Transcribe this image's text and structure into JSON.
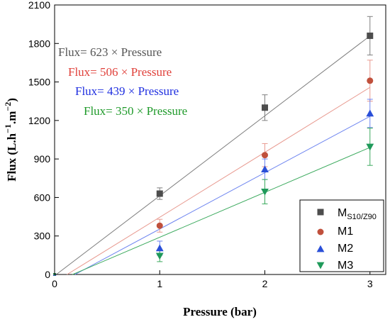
{
  "chart_data": {
    "type": "scatter",
    "xlabel": "Pressure (bar)",
    "ylabel": {
      "base": "Flux (L.h",
      "sup1": "−1",
      "mid": ".m",
      "sup2": "−2",
      "end": ")"
    },
    "xlim": [
      0,
      3.15
    ],
    "ylim": [
      0,
      2100
    ],
    "x_ticks": [
      "0",
      "1",
      "2",
      "3"
    ],
    "y_ticks": [
      "0",
      "300",
      "600",
      "900",
      "1200",
      "1500",
      "1800",
      "2100"
    ],
    "grid": false,
    "legend_position": "bottom-right",
    "series": [
      {
        "name": "M",
        "name_sub": "S10/Z90",
        "marker": "square",
        "color": "#4d4d4d",
        "line_color": "#7f7f7f",
        "x": [
          0,
          1,
          2,
          3
        ],
        "y": [
          0,
          630,
          1300,
          1860
        ],
        "err": [
          0,
          45,
          100,
          150
        ],
        "fit_slope": 623,
        "fit_intercept": -10
      },
      {
        "name": "M1",
        "marker": "circle",
        "color": "#c0503c",
        "line_color": "#e89a90",
        "x": [
          0,
          1,
          2,
          3
        ],
        "y": [
          0,
          380,
          930,
          1510
        ],
        "err": [
          0,
          50,
          90,
          160
        ],
        "fit_slope": 506,
        "fit_intercept": -60
      },
      {
        "name": "M2",
        "marker": "triangle-up",
        "color": "#2a4fd8",
        "line_color": "#6f86f0",
        "x": [
          0,
          1,
          2,
          3
        ],
        "y": [
          0,
          205,
          820,
          1255
        ],
        "err": [
          0,
          55,
          80,
          110
        ],
        "fit_slope": 439,
        "fit_intercept": -85
      },
      {
        "name": "M3",
        "marker": "triangle-down",
        "color": "#1f9a5a",
        "line_color": "#3caa5e",
        "x": [
          0,
          1,
          2,
          3
        ],
        "y": [
          0,
          145,
          645,
          995
        ],
        "err": [
          0,
          45,
          95,
          145
        ],
        "fit_slope": 350,
        "fit_intercept": -60
      }
    ],
    "annotations": [
      {
        "text": "Flux= 623 × Pressure",
        "color": "#555555"
      },
      {
        "text": "Flux= 506 × Pressure",
        "color": "#e0403a"
      },
      {
        "text": "Flux= 439 × Pressure",
        "color": "#1f2fe0"
      },
      {
        "text": "Flux= 350 × Pressure",
        "color": "#1f9a2a"
      }
    ]
  }
}
